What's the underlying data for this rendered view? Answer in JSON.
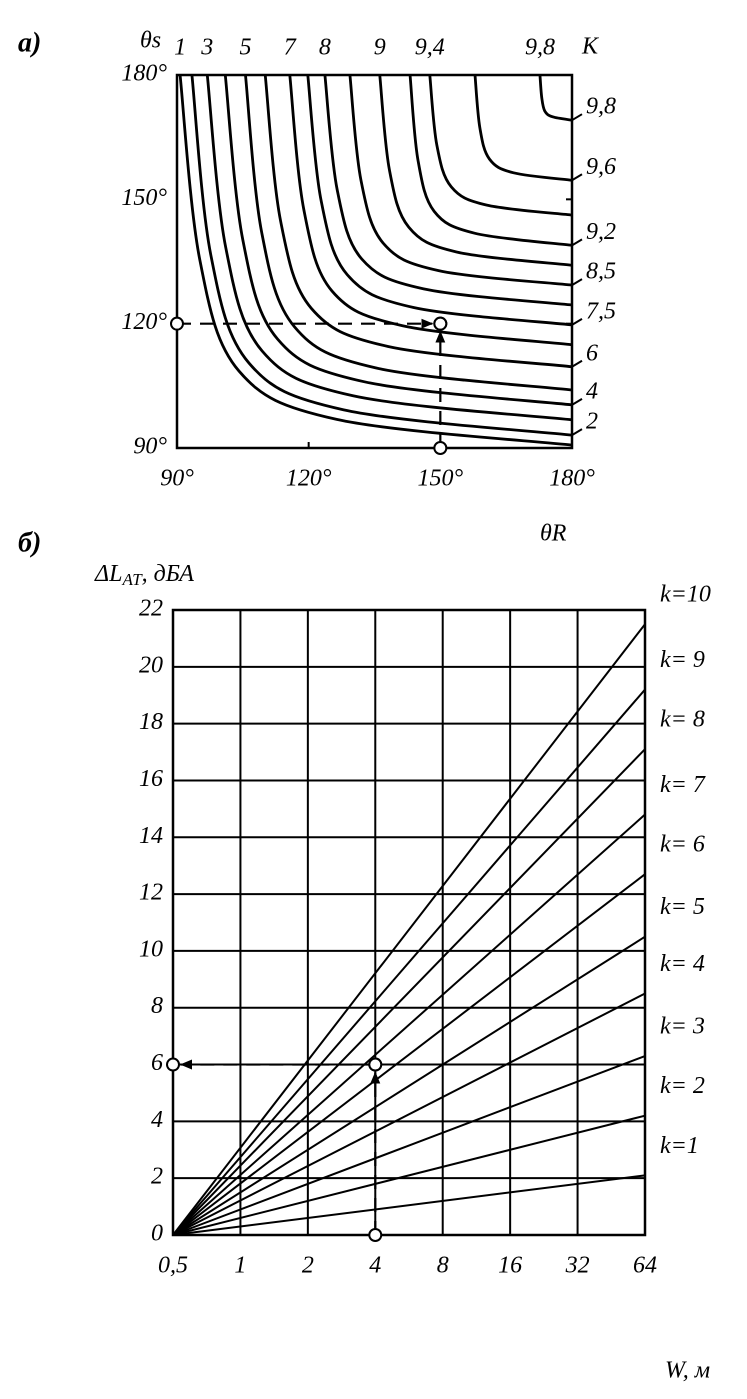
{
  "chart_data": [
    {
      "type": "line",
      "panel_label": "а)",
      "ylabel": "θs",
      "xlabel": "θR",
      "curve_label": "K",
      "xlim": [
        90,
        180
      ],
      "ylim": [
        90,
        180
      ],
      "xticks": [
        {
          "value": 90,
          "label": "90°"
        },
        {
          "value": 120,
          "label": "120°"
        },
        {
          "value": 150,
          "label": "150°"
        },
        {
          "value": 180,
          "label": "180°"
        }
      ],
      "yticks": [
        {
          "value": 90,
          "label": "90°"
        },
        {
          "value": 120,
          "label": "120°"
        },
        {
          "value": 150,
          "label": "150°"
        },
        {
          "value": 180,
          "label": "180°"
        }
      ],
      "grid": false,
      "color": "#000000",
      "series": [
        {
          "name": "1",
          "label_at": [
            "top"
          ],
          "x": [
            90.7,
            95.2,
            104.1,
            126.4,
            180
          ],
          "values": [
            180,
            135.4,
            108.6,
            96.9,
            90.7
          ]
        },
        {
          "name": "2",
          "label_at": [
            "right"
          ],
          "x": [
            93.4,
            97.7,
            106.4,
            128.0,
            180
          ],
          "values": [
            180,
            136.6,
            110.5,
            99.2,
            93.1
          ]
        },
        {
          "name": "3",
          "label_at": [
            "top"
          ],
          "x": [
            96.9,
            101.1,
            109.4,
            130.1,
            180
          ],
          "values": [
            180,
            138.4,
            113.4,
            102.6,
            96.8
          ]
        },
        {
          "name": "4",
          "label_at": [
            "right"
          ],
          "x": [
            101.0,
            105.0,
            112.9,
            132.6,
            180
          ],
          "values": [
            180,
            140.2,
            116.3,
            106.0,
            100.4
          ]
        },
        {
          "name": "5",
          "label_at": [
            "top"
          ],
          "x": [
            105.6,
            109.3,
            116.8,
            135.4,
            180
          ],
          "values": [
            180,
            142.0,
            119.2,
            109.3,
            104.0
          ]
        },
        {
          "name": "6",
          "label_at": [
            "right"
          ],
          "x": [
            110.1,
            113.6,
            120.6,
            138.1,
            180
          ],
          "values": [
            180,
            144.8,
            123.7,
            114.5,
            109.6
          ]
        },
        {
          "name": "7",
          "label_at": [
            "top"
          ],
          "x": [
            115.7,
            118.9,
            125.3,
            141.4,
            180
          ],
          "values": [
            180,
            147.5,
            127.9,
            119.5,
            114.9
          ]
        },
        {
          "name": "7,5",
          "label_at": [
            "right"
          ],
          "x": [
            119.8,
            122.8,
            128.8,
            143.9,
            180
          ],
          "values": [
            180,
            149.9,
            131.8,
            123.9,
            119.7
          ]
        },
        {
          "name": "8",
          "label_at": [
            "top"
          ],
          "x": [
            123.7,
            126.5,
            132.1,
            146.2,
            180
          ],
          "values": [
            180,
            152.3,
            135.6,
            128.4,
            124.5
          ]
        },
        {
          "name": "8,5",
          "label_at": [
            "right"
          ],
          "x": [
            129.4,
            131.9,
            137.0,
            149.6,
            180
          ],
          "values": [
            180,
            154.7,
            139.4,
            132.8,
            129.3
          ]
        },
        {
          "name": "9",
          "label_at": [
            "top"
          ],
          "x": [
            136.2,
            138.4,
            142.8,
            153.7,
            180
          ],
          "values": [
            180,
            157.1,
            143.3,
            137.3,
            134.1
          ]
        },
        {
          "name": "9,2",
          "label_at": [
            "right"
          ],
          "x": [
            143.1,
            144.9,
            148.6,
            157.9,
            180
          ],
          "values": [
            180,
            159.5,
            147.1,
            141.8,
            138.9
          ]
        },
        {
          "name": "9,4",
          "label_at": [
            "top"
          ],
          "x": [
            147.6,
            149.2,
            152.5,
            160.6,
            180
          ],
          "values": [
            180,
            163.1,
            153.0,
            148.6,
            146.2
          ]
        },
        {
          "name": "9,6",
          "label_at": [
            "right"
          ],
          "x": [
            157.9,
            159.0,
            161.2,
            166.7,
            180
          ],
          "values": [
            180,
            167.3,
            159.7,
            156.4,
            154.6
          ]
        },
        {
          "name": "9,8",
          "label_at": [
            "top",
            "right"
          ],
          "x": [
            172.7,
            173.1,
            173.8,
            175.6,
            180
          ],
          "values": [
            180,
            174.6,
            171.3,
            169.9,
            169.1
          ]
        }
      ],
      "guides": [
        {
          "x": [
            90,
            150
          ],
          "y": [
            120,
            120
          ]
        },
        {
          "x": [
            150,
            150
          ],
          "y": [
            90,
            120
          ]
        }
      ]
    },
    {
      "type": "line",
      "panel_label": "б)",
      "ylabel_main": "ΔL",
      "ylabel_sub": "AT",
      "ylabel_unit": ", дБА",
      "xlabel": "W, м",
      "log_x": 2,
      "xlim": [
        0.5,
        64
      ],
      "ylim": [
        0,
        22
      ],
      "xticks": [
        {
          "value": 0.5,
          "label": "0,5"
        },
        1,
        2,
        4,
        8,
        16,
        32,
        64
      ],
      "yticks": [
        0,
        2,
        4,
        6,
        8,
        10,
        12,
        14,
        16,
        18,
        20,
        22
      ],
      "grid": true,
      "color": "#000000",
      "x": [
        0.5,
        64
      ],
      "series": [
        {
          "name": "k=10",
          "values": [
            0,
            21.5
          ]
        },
        {
          "name": "k= 9",
          "values": [
            0,
            19.2
          ]
        },
        {
          "name": "k= 8",
          "values": [
            0,
            17.1
          ]
        },
        {
          "name": "k= 7",
          "values": [
            0,
            14.8
          ]
        },
        {
          "name": "k= 6",
          "values": [
            0,
            12.7
          ]
        },
        {
          "name": "k= 5",
          "values": [
            0,
            10.5
          ]
        },
        {
          "name": "k= 4",
          "values": [
            0,
            8.5
          ]
        },
        {
          "name": "k= 3",
          "values": [
            0,
            6.3
          ]
        },
        {
          "name": "k= 2",
          "values": [
            0,
            4.2
          ]
        },
        {
          "name": "k=1",
          "values": [
            0,
            2.1
          ]
        }
      ],
      "guides": [
        {
          "x": [
            4,
            4
          ],
          "y": [
            0,
            6
          ]
        },
        {
          "x": [
            4,
            0.5
          ],
          "y": [
            6,
            6
          ]
        }
      ]
    }
  ]
}
